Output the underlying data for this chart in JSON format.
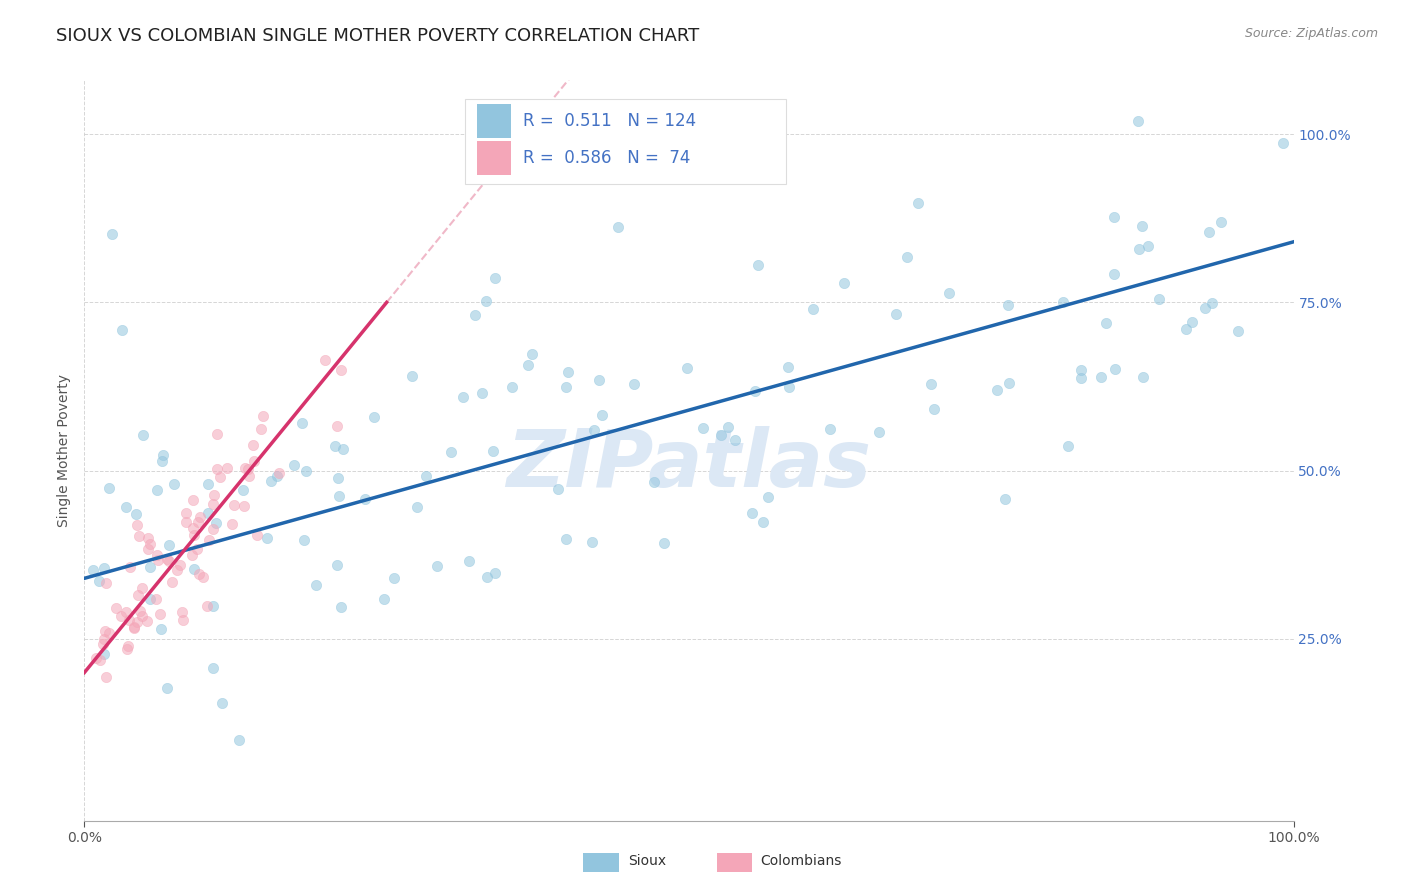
{
  "title": "SIOUX VS COLOMBIAN SINGLE MOTHER POVERTY CORRELATION CHART",
  "source_text": "Source: ZipAtlas.com",
  "ylabel": "Single Mother Poverty",
  "sioux_R": 0.511,
  "sioux_N": 124,
  "colombian_R": 0.586,
  "colombian_N": 74,
  "sioux_color": "#92c5de",
  "colombian_color": "#f4a6b8",
  "sioux_line_color": "#2166ac",
  "colombian_line_color": "#d6336c",
  "dashed_line_color": "#f0b8c8",
  "watermark": "ZIPatlas",
  "watermark_color": "#dce8f5",
  "background_color": "#ffffff",
  "grid_color": "#cccccc",
  "title_color": "#222222",
  "right_tick_color": "#4472c4",
  "legend_text_color": "#4472c4",
  "source_color": "#888888",
  "title_fontsize": 13,
  "axis_label_fontsize": 10,
  "tick_fontsize": 10,
  "marker_size": 55,
  "marker_alpha": 0.55,
  "sioux_line_intercept": 0.34,
  "sioux_line_slope": 0.5,
  "colombian_line_intercept": 0.2,
  "colombian_line_slope": 2.2
}
